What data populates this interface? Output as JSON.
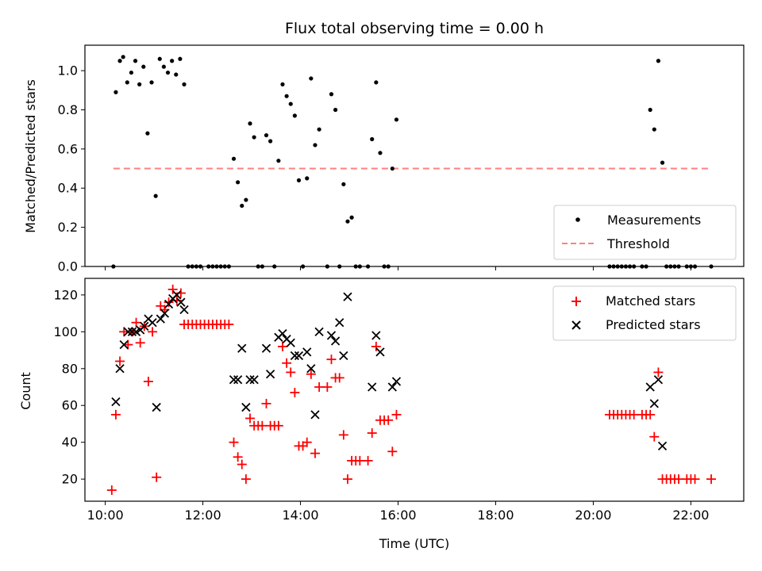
{
  "chart_data": [
    {
      "type": "scatter",
      "title": "Flux total observing time = 0.00 h",
      "xlabel": "",
      "ylabel": "Matched/Predicted stars",
      "xlim": [
        "09:35",
        "23:05"
      ],
      "ylim": [
        0,
        1.13
      ],
      "yticks": [
        0.0,
        0.2,
        0.4,
        0.6,
        0.8,
        1.0
      ],
      "xticks": [
        "10:00",
        "12:00",
        "14:00",
        "16:00",
        "18:00",
        "20:00",
        "22:00"
      ],
      "show_xtick_labels": false,
      "legend": {
        "placement": "lower-right",
        "entries": [
          "Measurements",
          "Threshold"
        ]
      },
      "series": [
        {
          "name": "Measurements",
          "marker": "dot",
          "color": "#000000",
          "points": [
            [
              "10:10",
              0.0
            ],
            [
              "10:13",
              0.89
            ],
            [
              "10:18",
              1.05
            ],
            [
              "10:22",
              1.07
            ],
            [
              "10:27",
              0.94
            ],
            [
              "10:32",
              0.99
            ],
            [
              "10:37",
              1.05
            ],
            [
              "10:42",
              0.93
            ],
            [
              "10:47",
              1.02
            ],
            [
              "10:52",
              0.68
            ],
            [
              "10:57",
              0.94
            ],
            [
              "11:02",
              0.36
            ],
            [
              "11:07",
              1.06
            ],
            [
              "11:12",
              1.02
            ],
            [
              "11:17",
              0.99
            ],
            [
              "11:22",
              1.05
            ],
            [
              "11:27",
              0.98
            ],
            [
              "11:32",
              1.06
            ],
            [
              "11:37",
              0.93
            ],
            [
              "11:42",
              0.0
            ],
            [
              "11:47",
              0.0
            ],
            [
              "11:52",
              0.0
            ],
            [
              "11:57",
              0.0
            ],
            [
              "12:07",
              0.0
            ],
            [
              "12:12",
              0.0
            ],
            [
              "12:17",
              0.0
            ],
            [
              "12:22",
              0.0
            ],
            [
              "12:27",
              0.0
            ],
            [
              "12:32",
              0.0
            ],
            [
              "12:38",
              0.55
            ],
            [
              "12:43",
              0.43
            ],
            [
              "12:48",
              0.31
            ],
            [
              "12:53",
              0.34
            ],
            [
              "12:58",
              0.73
            ],
            [
              "13:03",
              0.66
            ],
            [
              "13:08",
              0.0
            ],
            [
              "13:13",
              0.0
            ],
            [
              "13:18",
              0.67
            ],
            [
              "13:23",
              0.64
            ],
            [
              "13:28",
              0.0
            ],
            [
              "13:33",
              0.54
            ],
            [
              "13:38",
              0.93
            ],
            [
              "13:43",
              0.87
            ],
            [
              "13:48",
              0.83
            ],
            [
              "13:53",
              0.77
            ],
            [
              "13:58",
              0.44
            ],
            [
              "14:03",
              0.0
            ],
            [
              "14:08",
              0.45
            ],
            [
              "14:13",
              0.96
            ],
            [
              "14:18",
              0.62
            ],
            [
              "14:23",
              0.7
            ],
            [
              "14:33",
              0.0
            ],
            [
              "14:38",
              0.88
            ],
            [
              "14:43",
              0.8
            ],
            [
              "14:48",
              0.0
            ],
            [
              "14:53",
              0.42
            ],
            [
              "14:58",
              0.23
            ],
            [
              "15:03",
              0.25
            ],
            [
              "15:08",
              0.0
            ],
            [
              "15:13",
              0.0
            ],
            [
              "15:23",
              0.0
            ],
            [
              "15:28",
              0.65
            ],
            [
              "15:33",
              0.94
            ],
            [
              "15:38",
              0.58
            ],
            [
              "15:43",
              0.0
            ],
            [
              "15:48",
              0.0
            ],
            [
              "15:53",
              0.5
            ],
            [
              "15:58",
              0.75
            ],
            [
              "20:20",
              0.0
            ],
            [
              "20:25",
              0.0
            ],
            [
              "20:30",
              0.0
            ],
            [
              "20:35",
              0.0
            ],
            [
              "20:40",
              0.0
            ],
            [
              "20:45",
              0.0
            ],
            [
              "20:50",
              0.0
            ],
            [
              "21:00",
              0.0
            ],
            [
              "21:05",
              0.0
            ],
            [
              "21:10",
              0.8
            ],
            [
              "21:15",
              0.7
            ],
            [
              "21:20",
              1.05
            ],
            [
              "21:25",
              0.53
            ],
            [
              "21:30",
              0.0
            ],
            [
              "21:35",
              0.0
            ],
            [
              "21:40",
              0.0
            ],
            [
              "21:45",
              0.0
            ],
            [
              "21:55",
              0.0
            ],
            [
              "22:00",
              0.0
            ],
            [
              "22:05",
              0.0
            ],
            [
              "22:25",
              0.0
            ]
          ]
        },
        {
          "name": "Threshold",
          "style": "dashed-line",
          "color": "#ff8080",
          "x": [
            "10:10",
            "22:25"
          ],
          "y": [
            0.5,
            0.5
          ]
        }
      ]
    },
    {
      "type": "scatter",
      "title": "",
      "xlabel": "Time (UTC)",
      "ylabel": "Count",
      "xlim": [
        "09:35",
        "23:05"
      ],
      "ylim": [
        8,
        129
      ],
      "yticks": [
        20,
        40,
        60,
        80,
        100,
        120
      ],
      "xticks": [
        "10:00",
        "12:00",
        "14:00",
        "16:00",
        "18:00",
        "20:00",
        "22:00"
      ],
      "show_xtick_labels": true,
      "legend": {
        "placement": "upper-right",
        "entries": [
          "Matched stars",
          "Predicted stars"
        ]
      },
      "series": [
        {
          "name": "Matched stars",
          "marker": "plus",
          "color": "#ff0000",
          "points": [
            [
              "10:08",
              14
            ],
            [
              "10:13",
              55
            ],
            [
              "10:18",
              84
            ],
            [
              "10:23",
              100
            ],
            [
              "10:28",
              93
            ],
            [
              "10:33",
              100
            ],
            [
              "10:38",
              105
            ],
            [
              "10:43",
              94
            ],
            [
              "10:48",
              103
            ],
            [
              "10:53",
              73
            ],
            [
              "10:58",
              100
            ],
            [
              "11:03",
              21
            ],
            [
              "11:08",
              114
            ],
            [
              "11:13",
              112
            ],
            [
              "11:18",
              116
            ],
            [
              "11:23",
              123
            ],
            [
              "11:28",
              117
            ],
            [
              "11:33",
              121
            ],
            [
              "11:37",
              104
            ],
            [
              "11:42",
              104
            ],
            [
              "11:47",
              104
            ],
            [
              "11:52",
              104
            ],
            [
              "11:57",
              104
            ],
            [
              "12:02",
              104
            ],
            [
              "12:07",
              104
            ],
            [
              "12:12",
              104
            ],
            [
              "12:17",
              104
            ],
            [
              "12:22",
              104
            ],
            [
              "12:27",
              104
            ],
            [
              "12:32",
              104
            ],
            [
              "12:38",
              40
            ],
            [
              "12:43",
              32
            ],
            [
              "12:48",
              28
            ],
            [
              "12:53",
              20
            ],
            [
              "12:58",
              53
            ],
            [
              "13:03",
              49
            ],
            [
              "13:08",
              49
            ],
            [
              "13:13",
              49
            ],
            [
              "13:18",
              61
            ],
            [
              "13:23",
              49
            ],
            [
              "13:28",
              49
            ],
            [
              "13:33",
              49
            ],
            [
              "13:38",
              92
            ],
            [
              "13:43",
              83
            ],
            [
              "13:48",
              78
            ],
            [
              "13:53",
              67
            ],
            [
              "13:58",
              38
            ],
            [
              "14:03",
              38
            ],
            [
              "14:08",
              40
            ],
            [
              "14:13",
              77
            ],
            [
              "14:18",
              34
            ],
            [
              "14:23",
              70
            ],
            [
              "14:33",
              70
            ],
            [
              "14:38",
              85
            ],
            [
              "14:43",
              75
            ],
            [
              "14:48",
              75
            ],
            [
              "14:53",
              44
            ],
            [
              "14:58",
              20
            ],
            [
              "15:03",
              30
            ],
            [
              "15:08",
              30
            ],
            [
              "15:13",
              30
            ],
            [
              "15:23",
              30
            ],
            [
              "15:28",
              45
            ],
            [
              "15:33",
              92
            ],
            [
              "15:38",
              52
            ],
            [
              "15:43",
              52
            ],
            [
              "15:48",
              52
            ],
            [
              "15:53",
              35
            ],
            [
              "15:58",
              55
            ],
            [
              "20:20",
              55
            ],
            [
              "20:25",
              55
            ],
            [
              "20:30",
              55
            ],
            [
              "20:35",
              55
            ],
            [
              "20:40",
              55
            ],
            [
              "20:45",
              55
            ],
            [
              "20:50",
              55
            ],
            [
              "21:00",
              55
            ],
            [
              "21:05",
              55
            ],
            [
              "21:10",
              55
            ],
            [
              "21:15",
              43
            ],
            [
              "21:20",
              78
            ],
            [
              "21:25",
              20
            ],
            [
              "21:30",
              20
            ],
            [
              "21:35",
              20
            ],
            [
              "21:40",
              20
            ],
            [
              "21:45",
              20
            ],
            [
              "21:55",
              20
            ],
            [
              "22:00",
              20
            ],
            [
              "22:05",
              20
            ],
            [
              "22:25",
              20
            ]
          ]
        },
        {
          "name": "Predicted stars",
          "marker": "x",
          "color": "#000000",
          "points": [
            [
              "10:13",
              62
            ],
            [
              "10:18",
              80
            ],
            [
              "10:23",
              93
            ],
            [
              "10:28",
              100
            ],
            [
              "10:33",
              100
            ],
            [
              "10:38",
              100
            ],
            [
              "10:43",
              101
            ],
            [
              "10:48",
              103
            ],
            [
              "10:53",
              107
            ],
            [
              "10:58",
              105
            ],
            [
              "11:03",
              59
            ],
            [
              "11:08",
              107
            ],
            [
              "11:13",
              110
            ],
            [
              "11:18",
              115
            ],
            [
              "11:23",
              118
            ],
            [
              "11:28",
              120
            ],
            [
              "11:33",
              116
            ],
            [
              "11:37",
              112
            ],
            [
              "12:38",
              74
            ],
            [
              "12:43",
              74
            ],
            [
              "12:48",
              91
            ],
            [
              "12:53",
              59
            ],
            [
              "12:58",
              74
            ],
            [
              "13:03",
              74
            ],
            [
              "13:18",
              91
            ],
            [
              "13:23",
              77
            ],
            [
              "13:33",
              97
            ],
            [
              "13:38",
              99
            ],
            [
              "13:43",
              96
            ],
            [
              "13:48",
              94
            ],
            [
              "13:53",
              87
            ],
            [
              "13:58",
              87
            ],
            [
              "14:08",
              89
            ],
            [
              "14:13",
              80
            ],
            [
              "14:18",
              55
            ],
            [
              "14:23",
              100
            ],
            [
              "14:38",
              98
            ],
            [
              "14:43",
              95
            ],
            [
              "14:48",
              105
            ],
            [
              "14:53",
              87
            ],
            [
              "14:58",
              119
            ],
            [
              "15:28",
              70
            ],
            [
              "15:33",
              98
            ],
            [
              "15:38",
              89
            ],
            [
              "15:53",
              70
            ],
            [
              "15:58",
              73
            ],
            [
              "21:10",
              70
            ],
            [
              "21:15",
              61
            ],
            [
              "21:20",
              74
            ],
            [
              "21:25",
              38
            ]
          ]
        }
      ]
    }
  ]
}
